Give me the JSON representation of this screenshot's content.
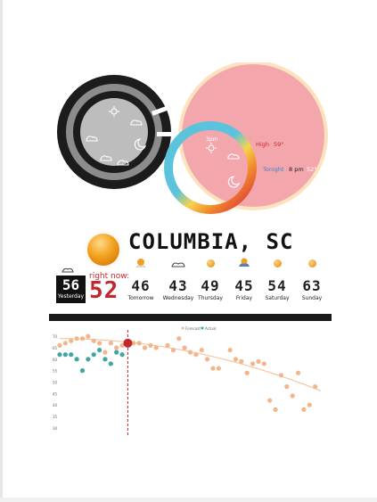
{
  "city": "COLUMBIA, SC",
  "current": {
    "label": "right now:",
    "temp": "52"
  },
  "yesterday": {
    "temp": "56",
    "label": "Yesterday"
  },
  "forecast": [
    {
      "day": "Tomorrow",
      "temp": "46",
      "icon": "sun-partly-cloudy-icon"
    },
    {
      "day": "Wednesday",
      "temp": "43",
      "icon": "cloud-icon"
    },
    {
      "day": "Thursday",
      "temp": "49",
      "icon": "sun-icon"
    },
    {
      "day": "Friday",
      "temp": "45",
      "icon": "storm-icon"
    },
    {
      "day": "Saturday",
      "temp": "54",
      "icon": "sun-icon"
    },
    {
      "day": "Sunday",
      "temp": "63",
      "icon": "sun-icon"
    }
  ],
  "dial": {
    "time_label": "3pm",
    "high_label": "High",
    "high_value": "59°",
    "tonight_label": "Tonight",
    "tonight_time": "8 pm",
    "tonight_value": "52°"
  },
  "colors": {
    "accent_red": "#c1272d",
    "high_pink": "#f4a6ad",
    "ring_blue": "#5bc4dc",
    "dial_dark": "#1c1c1c"
  },
  "chart_data": {
    "type": "scatter",
    "legend": [
      "Forecast",
      "Actual"
    ],
    "y_ticks": [
      "70",
      "65",
      "60",
      "55",
      "50",
      "45",
      "40",
      "35",
      "30"
    ],
    "ylim": [
      28,
      72
    ],
    "xlim": [
      0,
      46
    ],
    "now_x": 12,
    "series": [
      {
        "name": "Forecast",
        "color": "#f4b58a",
        "x": [
          0,
          1,
          2,
          3,
          4,
          5,
          6,
          7,
          8,
          9,
          10,
          11,
          13,
          14,
          15,
          16,
          17,
          19,
          20,
          21,
          22,
          23,
          24,
          25,
          26,
          27,
          28,
          30,
          31,
          32,
          33,
          34,
          35,
          36,
          37,
          38,
          39,
          40,
          41,
          42,
          43,
          44,
          45
        ],
        "y": [
          66,
          67,
          68,
          69,
          69,
          70,
          68,
          67,
          63,
          67,
          65,
          66,
          67,
          67,
          65,
          66,
          65,
          66,
          64,
          69,
          65,
          63,
          62,
          64,
          60,
          56,
          56,
          64,
          60,
          59,
          54,
          58,
          59,
          58,
          42,
          38,
          53,
          48,
          44,
          54,
          38,
          40,
          48
        ]
      },
      {
        "name": "Actual",
        "color": "#3fa6a0",
        "x": [
          0,
          1,
          2,
          3,
          4,
          5,
          6,
          7,
          8,
          9,
          10,
          11
        ],
        "y": [
          62,
          62,
          62,
          60,
          55,
          60,
          62,
          64,
          60,
          58,
          63,
          62
        ]
      }
    ]
  }
}
